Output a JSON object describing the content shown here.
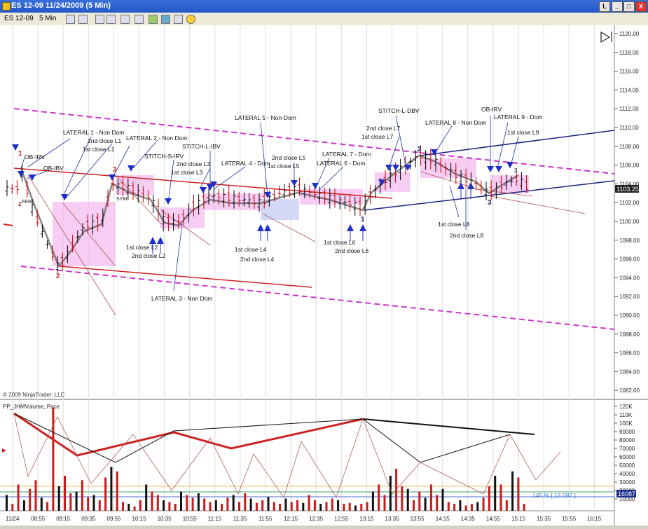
{
  "window": {
    "title": "ES 12-09  11/24/2009 (5 Min)",
    "btn_left": "L",
    "btn_min": "_",
    "btn_max": "□",
    "btn_close": "X"
  },
  "toolbar": {
    "instrument": "ES 12-09",
    "interval": "5 Min"
  },
  "price_axis": {
    "ticks": [
      "1120.00",
      "1118.00",
      "1116.00",
      "1114.00",
      "1112.00",
      "1110.00",
      "1108.00",
      "1106.00",
      "1104.00",
      "1102.00",
      "1100.00",
      "1098.00",
      "1096.00",
      "1094.00",
      "1092.00",
      "1090.00",
      "1088.00",
      "1086.00",
      "1084.00",
      "1082.00"
    ],
    "current": "1103.25"
  },
  "volume_axis": {
    "ticks": [
      "120K",
      "110K",
      "100K",
      "90000",
      "80000",
      "70000",
      "60000",
      "50000",
      "40000",
      "30000",
      "20000",
      "10000"
    ],
    "current": "16087",
    "pace_label": "145 % [ 16 087 ]"
  },
  "time_axis": [
    "11/24",
    "08:55",
    "09:15",
    "09:35",
    "09:55",
    "10:15",
    "10:35",
    "10:55",
    "11:15",
    "11:35",
    "11:55",
    "12:15",
    "12:35",
    "12:55",
    "13:15",
    "13:35",
    "13:55",
    "14:15",
    "14:35",
    "14:55",
    "15:15",
    "15:35",
    "15:55",
    "16:15"
  ],
  "copyright": "© 2009 NinjaTrader, LLC",
  "indicator_label": "PP_JHMVolume, Pace",
  "annotations": {
    "a1": "LATERAL 1 - Non Dom",
    "a2": "2nd close L1",
    "a3": "1st close L1",
    "a4": "LATERAL 2 - Non Dom",
    "a5": "STITCH-S-IRV",
    "a6": "STITCH-L-IBV",
    "a7": "2nd close L3",
    "a8": "1st close L3",
    "a9": "LATERAL 4 - Dom",
    "a10": "LATERAL 5 - Non-Dom",
    "a11": "2nd close L5",
    "a12": "1st close L5",
    "a13": "LATERAL 7 - Dom",
    "a14": "LATERAL 6 - Dom",
    "a15": "STITCH-L-DBV",
    "a16": "2nd close L7",
    "a17": "1st close L7",
    "a18": "LATERAL 8 - Non Dom",
    "a19": "OB-IRV",
    "a20": "LATERAL 9 - Dom",
    "a21": "1st close L9",
    "a22": "1st close L8",
    "a23": "2nd close L8",
    "a24": "1st close L6",
    "a25": "2nd close L6",
    "a26": "1st close L4",
    "a27": "2nd close L4",
    "a28": "1st close L2",
    "a29": "2nd close L2",
    "a30": "LATERAL 3 - Non Dom",
    "a31": "OB-IRV",
    "a32": "OB-IBV",
    "a33": "FER",
    "a34": "SYM"
  },
  "point_labels": {
    "p1": "1",
    "p2": "2",
    "p3": "3",
    "p2b": "2",
    "p1b": "1",
    "p3b": "3",
    "p2c": "2",
    "p3c": "3"
  },
  "colors": {
    "magenta": "#cc33cc",
    "red": "#cc2222",
    "navy": "#1a237e",
    "box_pink": "#f4b8f0",
    "box_blue": "#c8d0f4",
    "arrow": "#1f2fc8"
  }
}
